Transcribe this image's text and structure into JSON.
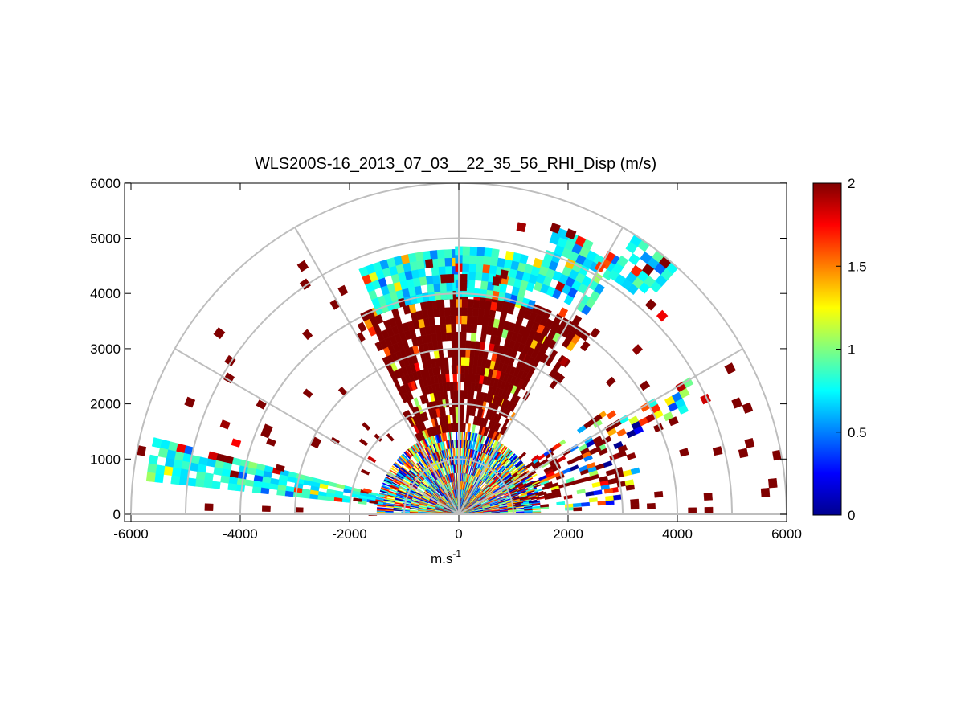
{
  "chart_data": {
    "type": "heatmap",
    "subtype": "polar RHI scan (range-height)",
    "title": "WLS200S-16_2013_07_03__22_35_56_RHI_Disp (m/s)",
    "xlabel": "m.s",
    "xlabel_superscript": "-1",
    "ylabel": "",
    "xlim": [
      -6100,
      6000
    ],
    "ylim": [
      -130,
      6000
    ],
    "xticks": [
      -6000,
      -4000,
      -2000,
      0,
      2000,
      4000,
      6000
    ],
    "yticks": [
      0,
      1000,
      2000,
      3000,
      4000,
      5000,
      6000
    ],
    "grid": {
      "rings_m": [
        1000,
        2000,
        3000,
        4000,
        5000,
        6000
      ],
      "spokes_deg": [
        0,
        30,
        60,
        90,
        120,
        150,
        180
      ],
      "color": "#bebebe"
    },
    "colorbar": {
      "colormap": "jet",
      "range": [
        0,
        2
      ],
      "ticks": [
        0,
        0.5,
        1,
        1.5,
        2
      ],
      "placement": "right"
    },
    "regions": [
      {
        "elev_deg": [
          0,
          180
        ],
        "range_m": [
          0,
          1500
        ],
        "pattern": "mixed",
        "density": 0.85
      },
      {
        "elev_deg": [
          60,
          118
        ],
        "range_m": [
          1500,
          2100
        ],
        "pattern": "high",
        "density": 0.8
      },
      {
        "elev_deg": [
          62,
          115
        ],
        "range_m": [
          2100,
          4000
        ],
        "pattern": "high",
        "density": 0.85
      },
      {
        "elev_deg": [
          90,
          112
        ],
        "range_m": [
          3900,
          4750
        ],
        "pattern": "cyan",
        "density": 0.9
      },
      {
        "elev_deg": [
          70,
          90
        ],
        "range_m": [
          3950,
          4800
        ],
        "pattern": "cyan",
        "density": 0.9
      },
      {
        "elev_deg": [
          57,
          70
        ],
        "range_m": [
          4300,
          5500
        ],
        "pattern": "cyan",
        "density": 0.85
      },
      {
        "elev_deg": [
          48,
          57
        ],
        "range_m": [
          5100,
          5900
        ],
        "pattern": "cyan",
        "density": 0.75
      },
      {
        "elev_deg": [
          52,
          62
        ],
        "range_m": [
          3000,
          4200
        ],
        "pattern": "high",
        "density": 0.6
      },
      {
        "elev_deg": [
          166,
          173
        ],
        "range_m": [
          1400,
          5700
        ],
        "pattern": "cyan",
        "density": 0.85
      },
      {
        "elev_deg": [
          8,
          35
        ],
        "range_m": [
          1000,
          3400
        ],
        "pattern": "mixed-high",
        "density": 0.45
      },
      {
        "elev_deg": [
          24,
          30
        ],
        "range_m": [
          3400,
          5100
        ],
        "pattern": "mixed",
        "density": 0.45
      },
      {
        "elev_deg": [
          2,
          6
        ],
        "range_m": [
          1500,
          3000
        ],
        "pattern": "mixed",
        "density": 0.4
      },
      {
        "elev_deg": [
          0,
          180
        ],
        "range_m": [
          1500,
          6000
        ],
        "pattern": "scatter",
        "density": 0.025
      }
    ]
  }
}
